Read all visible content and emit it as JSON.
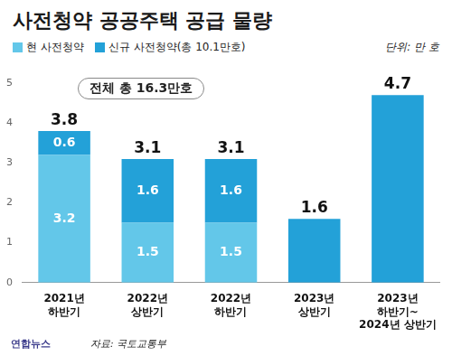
{
  "chart_data": {
    "type": "bar",
    "title": "사전청약 공공주택 공급 물량",
    "unit_label": "단위: 만 호",
    "annotation": "전체 총 16.3만호",
    "source": "자료: 국토교통부",
    "credit": "연합뉴스",
    "categories": [
      [
        "2021년",
        "하반기"
      ],
      [
        "2022년",
        "상반기"
      ],
      [
        "2022년",
        "하반기"
      ],
      [
        "2023년",
        "상반기"
      ],
      [
        "2023년",
        "하반기~",
        "2024년 상반기"
      ]
    ],
    "series": [
      {
        "name": "현 사전청약",
        "color": "#63c7e9",
        "values": [
          3.2,
          1.5,
          1.5,
          null,
          null
        ]
      },
      {
        "name": "신규 사전청약(총 10.1만호)",
        "color": "#23a1d8",
        "values": [
          0.6,
          1.6,
          1.6,
          1.6,
          4.7
        ],
        "value_labels": [
          "0.6",
          "1.6",
          "1.6",
          null,
          null
        ]
      }
    ],
    "totals": [
      3.8,
      3.1,
      3.1,
      1.6,
      4.7
    ],
    "stacked": true,
    "data_labels": true,
    "legend": "top-left",
    "grid": false,
    "ylim": [
      0,
      5
    ],
    "yticks": [
      0,
      1,
      2,
      3,
      4,
      5
    ]
  }
}
